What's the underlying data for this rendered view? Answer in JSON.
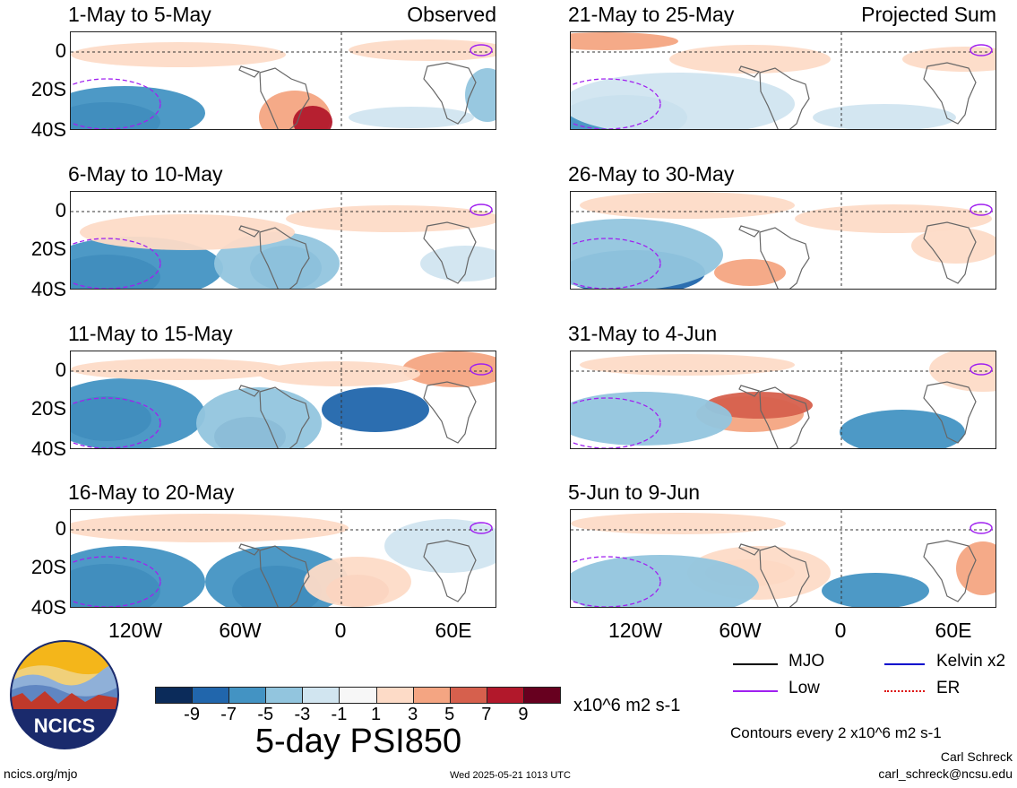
{
  "panels": [
    {
      "title": "1-May to 5-May",
      "tag": "Observed"
    },
    {
      "title": "21-May to 25-May",
      "tag": "Projected Sum"
    },
    {
      "title": "6-May to 10-May",
      "tag": ""
    },
    {
      "title": "26-May to 30-May",
      "tag": ""
    },
    {
      "title": "11-May to 15-May",
      "tag": ""
    },
    {
      "title": "31-May to 4-Jun",
      "tag": ""
    },
    {
      "title": "16-May to 20-May",
      "tag": ""
    },
    {
      "title": "5-Jun to 9-Jun",
      "tag": ""
    }
  ],
  "y_ticks": [
    "0",
    "20S",
    "40S"
  ],
  "x_ticks": [
    "120W",
    "60W",
    "0",
    "60E"
  ],
  "colorbar": {
    "labels": [
      "-9",
      "-7",
      "-5",
      "-3",
      "-1",
      "1",
      "3",
      "5",
      "7",
      "9"
    ],
    "colors": [
      "#0b2b5a",
      "#2166ac",
      "#4393c3",
      "#92c5de",
      "#d1e5f0",
      "#f7f7f7",
      "#fddbc7",
      "#f4a582",
      "#d6604d",
      "#b2182b",
      "#67001f"
    ],
    "units": "x10^6 m2 s-1",
    "title": "5-day PSI850"
  },
  "legend": [
    {
      "label": "MJO",
      "color": "#000000"
    },
    {
      "label": "Kelvin x2",
      "color": "#0000cc"
    },
    {
      "label": "Low",
      "color": "#a020f0"
    },
    {
      "label": "ER",
      "color": "#dd1111"
    }
  ],
  "contour_note": "Contours every 2 x10^6 m2 s-1",
  "author": "Carl Schreck",
  "email": "carl_schreck@ncsu.edu",
  "site": "ncics.org/mjo",
  "timestamp": "Wed 2025-05-21 1013 UTC",
  "logo_text": "NCICS"
}
